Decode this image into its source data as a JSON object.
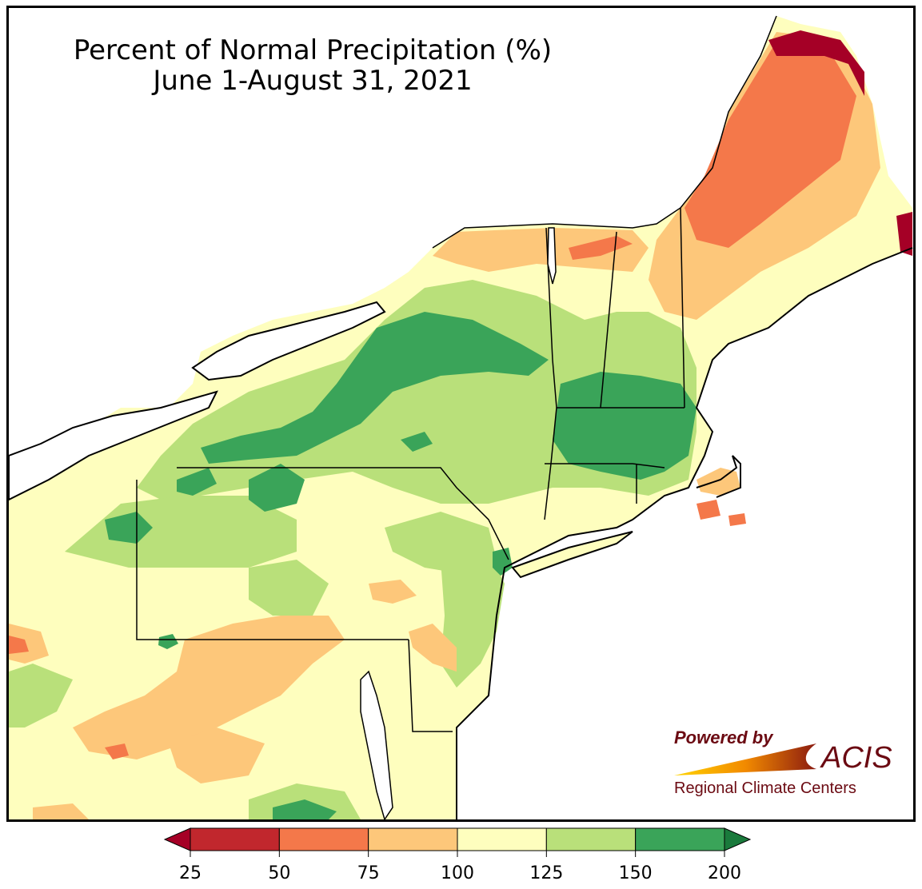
{
  "title": {
    "line1": "Percent of Normal Precipitation (%)",
    "line2": "June 1-August 31, 2021"
  },
  "legend": {
    "ticks": [
      "25",
      "50",
      "75",
      "100",
      "125",
      "150",
      "200"
    ],
    "colors": [
      "#c1272d",
      "#f4784a",
      "#fdc77a",
      "#fefebe",
      "#b9e07a",
      "#3aa459"
    ],
    "under_color": "#a50026",
    "over_color": "#1a7a3c"
  },
  "logo": {
    "powered_by": "Powered by",
    "acis": "ACIS",
    "rcc": "Regional Climate Centers"
  },
  "colors": {
    "water": "#ffffff",
    "very_dry": "#a50026",
    "dry": "#f4784a",
    "below": "#fdc77a",
    "near": "#fefebe",
    "above": "#b9e07a",
    "wet": "#3aa459",
    "very_wet": "#1a7a3c"
  }
}
